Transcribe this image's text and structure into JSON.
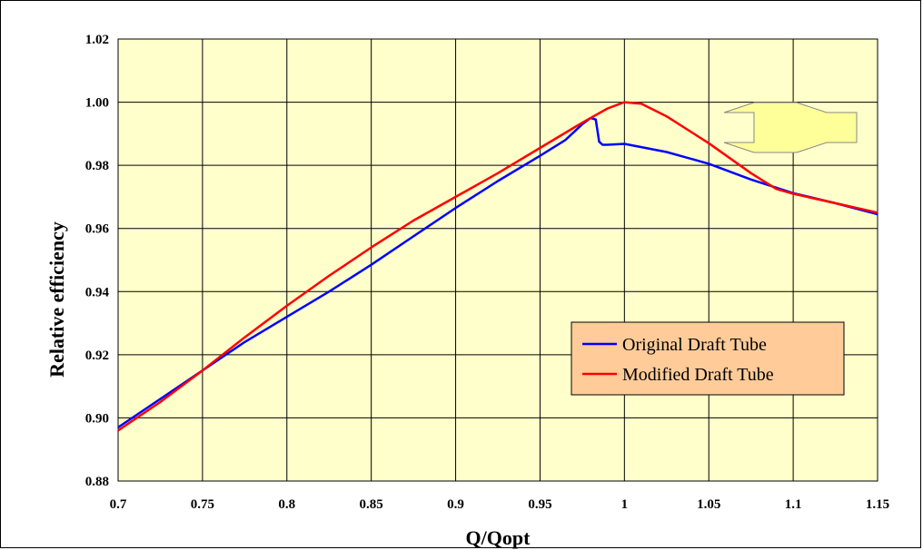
{
  "chart_data": {
    "type": "line",
    "title": "",
    "xlabel": "Q/Qopt",
    "ylabel": "Relative efficiency",
    "xlim": [
      0.7,
      1.15
    ],
    "ylim": [
      0.88,
      1.02
    ],
    "x_ticks": [
      "0.7",
      "0.75",
      "0.8",
      "0.85",
      "0.9",
      "0.95",
      "1",
      "1.05",
      "1.1",
      "1.15"
    ],
    "x_tick_values": [
      0.7,
      0.75,
      0.8,
      0.85,
      0.9,
      0.95,
      1.0,
      1.05,
      1.1,
      1.15
    ],
    "y_ticks": [
      "0.88",
      "0.90",
      "0.92",
      "0.94",
      "0.96",
      "0.98",
      "1.00",
      "1.02"
    ],
    "y_tick_values": [
      0.88,
      0.9,
      0.92,
      0.94,
      0.96,
      0.98,
      1.0,
      1.02
    ],
    "grid": true,
    "legend_position": "lower-right",
    "plot_background": "#FFFFCC",
    "legend_background": "#FFCC99",
    "series": [
      {
        "name": "Original Draft Tube",
        "color": "#0000FF",
        "x": [
          0.7,
          0.725,
          0.75,
          0.775,
          0.8,
          0.825,
          0.85,
          0.875,
          0.9,
          0.925,
          0.95,
          0.965,
          0.975,
          0.98,
          0.983,
          0.985,
          0.987,
          0.99,
          1.0,
          1.025,
          1.05,
          1.075,
          1.1,
          1.125,
          1.15
        ],
        "y": [
          0.897,
          0.906,
          0.915,
          0.924,
          0.932,
          0.94,
          0.9485,
          0.9575,
          0.9665,
          0.975,
          0.983,
          0.988,
          0.993,
          0.995,
          0.9945,
          0.9875,
          0.9865,
          0.9865,
          0.9868,
          0.9842,
          0.9805,
          0.9755,
          0.9712,
          0.968,
          0.9645
        ]
      },
      {
        "name": "Modified Draft Tube",
        "color": "#FF0000",
        "x": [
          0.7,
          0.725,
          0.75,
          0.775,
          0.8,
          0.825,
          0.85,
          0.875,
          0.9,
          0.925,
          0.95,
          0.975,
          0.99,
          1.0,
          1.01,
          1.025,
          1.05,
          1.075,
          1.09,
          1.1,
          1.125,
          1.15
        ],
        "y": [
          0.896,
          0.905,
          0.915,
          0.9255,
          0.9355,
          0.945,
          0.954,
          0.9625,
          0.97,
          0.9775,
          0.9855,
          0.9935,
          0.998,
          1.0,
          0.9995,
          0.9955,
          0.987,
          0.9775,
          0.9725,
          0.971,
          0.968,
          0.965
        ]
      }
    ]
  }
}
